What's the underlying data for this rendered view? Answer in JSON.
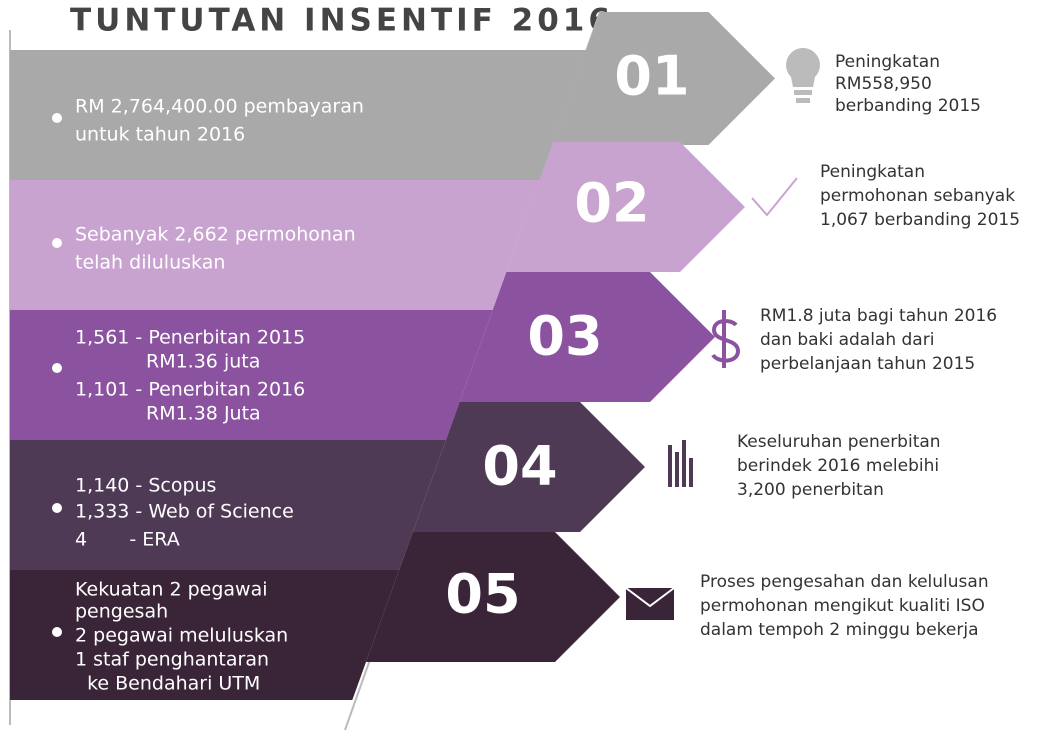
{
  "title": "TUNTUTAN INSENTIF 2016",
  "steps": [
    {
      "number": "01",
      "left": [
        "RM 2,764,400.00 pembayaran",
        "untuk tahun 2016"
      ],
      "right": [
        "Peningkatan",
        "RM558,950",
        "berbanding 2015"
      ]
    },
    {
      "number": "02",
      "left": [
        "Sebanyak 2,662 permohonan",
        "telah diluluskan"
      ],
      "right": [
        "Peningkatan",
        "permohonan sebanyak",
        "1,067 berbanding 2015"
      ]
    },
    {
      "number": "03",
      "left": [
        "1,561 - Penerbitan 2015",
        "RM1.36 juta",
        "1,101 - Penerbitan 2016",
        "RM1.38 Juta"
      ],
      "right": [
        "RM1.8 juta bagi tahun 2016",
        "dan baki adalah dari",
        "perbelanjaan tahun 2015"
      ]
    },
    {
      "number": "04",
      "left": [
        "1,140 - Scopus",
        "1,333 - Web of Science",
        "4       - ERA"
      ],
      "right": [
        "Keseluruhan penerbitan",
        "berindek 2016 melebihi",
        "3,200 penerbitan"
      ]
    },
    {
      "number": "05",
      "left": [
        "Kekuatan 2 pegawai",
        "pengesah",
        "2 pegawai meluluskan",
        "1 staf penghantaran",
        "  ke Bendahari UTM"
      ],
      "right": [
        "Proses pengesahan dan kelulusan",
        "permohonan mengikut kualiti ISO",
        "dalam tempoh 2 minggu bekerja"
      ]
    }
  ]
}
